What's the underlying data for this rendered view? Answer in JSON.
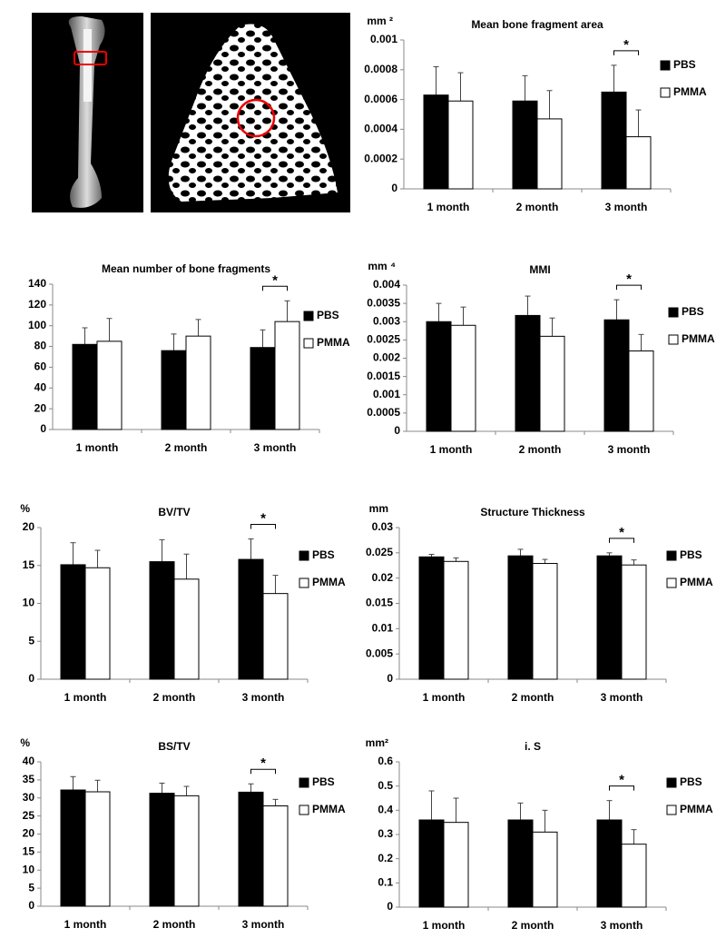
{
  "chart_data": [
    {
      "type": "bar",
      "title": "Mean bone fragment area",
      "unit": "mm ²",
      "annotation": "*",
      "categories": [
        "1 month",
        "2 month",
        "3 month"
      ],
      "series": [
        {
          "name": "PBS",
          "color": "#000000",
          "values": [
            0.00063,
            0.00059,
            0.00065
          ],
          "errors": [
            0.00019,
            0.00017,
            0.00018
          ]
        },
        {
          "name": "PMMA",
          "color": "#ffffff",
          "values": [
            0.00059,
            0.00047,
            0.00035
          ],
          "errors": [
            0.00019,
            0.00019,
            0.00018
          ]
        }
      ],
      "ylim": [
        0,
        0.001
      ],
      "yticks": [
        0,
        0.0002,
        0.0004,
        0.0006,
        0.0008,
        0.001
      ]
    },
    {
      "type": "bar",
      "title": "Mean number of bone fragments",
      "annotation": "*",
      "categories": [
        "1 month",
        "2 month",
        "3 month"
      ],
      "series": [
        {
          "name": "PBS",
          "color": "#000000",
          "values": [
            82,
            76,
            79
          ],
          "errors": [
            16,
            16,
            17
          ]
        },
        {
          "name": "PMMA",
          "color": "#ffffff",
          "values": [
            85,
            90,
            104
          ],
          "errors": [
            22,
            16,
            20
          ]
        }
      ],
      "ylim": [
        0,
        140
      ],
      "yticks": [
        0,
        20,
        40,
        60,
        80,
        100,
        120,
        140
      ]
    },
    {
      "type": "bar",
      "title": "MMI",
      "unit": "mm ⁴",
      "annotation": "*",
      "categories": [
        "1 month",
        "2 month",
        "3 month"
      ],
      "series": [
        {
          "name": "PBS",
          "color": "#000000",
          "values": [
            0.003,
            0.00317,
            0.00305
          ],
          "errors": [
            0.0005,
            0.00053,
            0.00055
          ]
        },
        {
          "name": "PMMA",
          "color": "#ffffff",
          "values": [
            0.0029,
            0.0026,
            0.0022
          ],
          "errors": [
            0.0005,
            0.0005,
            0.00045
          ]
        }
      ],
      "ylim": [
        0,
        0.004
      ],
      "yticks": [
        0,
        0.0005,
        0.001,
        0.0015,
        0.002,
        0.0025,
        0.003,
        0.0035,
        0.004
      ]
    },
    {
      "type": "bar",
      "title": "BV/TV",
      "unit": "%",
      "annotation": "*",
      "categories": [
        "1 month",
        "2 month",
        "3 month"
      ],
      "series": [
        {
          "name": "PBS",
          "color": "#000000",
          "values": [
            15.1,
            15.5,
            15.8
          ],
          "errors": [
            2.9,
            2.9,
            2.7
          ]
        },
        {
          "name": "PMMA",
          "color": "#ffffff",
          "values": [
            14.7,
            13.2,
            11.3
          ],
          "errors": [
            2.3,
            3.3,
            2.4
          ]
        }
      ],
      "ylim": [
        0,
        20
      ],
      "yticks": [
        0,
        5,
        10,
        15,
        20
      ]
    },
    {
      "type": "bar",
      "title": "Structure Thickness",
      "unit": "mm",
      "annotation": "*",
      "categories": [
        "1 month",
        "2 month",
        "3 month"
      ],
      "series": [
        {
          "name": "PBS",
          "color": "#000000",
          "values": [
            0.0242,
            0.0244,
            0.0244
          ],
          "errors": [
            0.0005,
            0.0013,
            0.0006
          ]
        },
        {
          "name": "PMMA",
          "color": "#ffffff",
          "values": [
            0.0233,
            0.0229,
            0.0226
          ],
          "errors": [
            0.0007,
            0.0008,
            0.001
          ]
        }
      ],
      "ylim": [
        0,
        0.03
      ],
      "yticks": [
        0,
        0.005,
        0.01,
        0.015,
        0.02,
        0.025,
        0.03
      ]
    },
    {
      "type": "bar",
      "title": "BS/TV",
      "unit": "%",
      "annotation": "*",
      "categories": [
        "1 month",
        "2 month",
        "3 month"
      ],
      "series": [
        {
          "name": "PBS",
          "color": "#000000",
          "values": [
            32.2,
            31.3,
            31.6
          ],
          "errors": [
            3.7,
            2.8,
            2.3
          ]
        },
        {
          "name": "PMMA",
          "color": "#ffffff",
          "values": [
            31.7,
            30.6,
            27.8
          ],
          "errors": [
            3.2,
            2.6,
            1.8
          ]
        }
      ],
      "ylim": [
        0,
        40
      ],
      "yticks": [
        0,
        5,
        10,
        15,
        20,
        25,
        30,
        35,
        40
      ]
    },
    {
      "type": "bar",
      "title": "i. S",
      "unit": "mm²",
      "annotation": "*",
      "categories": [
        "1 month",
        "2 month",
        "3 month"
      ],
      "series": [
        {
          "name": "PBS",
          "color": "#000000",
          "values": [
            0.36,
            0.36,
            0.36
          ],
          "errors": [
            0.12,
            0.07,
            0.08
          ]
        },
        {
          "name": "PMMA",
          "color": "#ffffff",
          "values": [
            0.35,
            0.31,
            0.26
          ],
          "errors": [
            0.1,
            0.09,
            0.06
          ]
        }
      ],
      "ylim": [
        0,
        0.6
      ],
      "yticks": [
        0,
        0.1,
        0.2,
        0.3,
        0.4,
        0.5,
        0.6
      ]
    }
  ]
}
